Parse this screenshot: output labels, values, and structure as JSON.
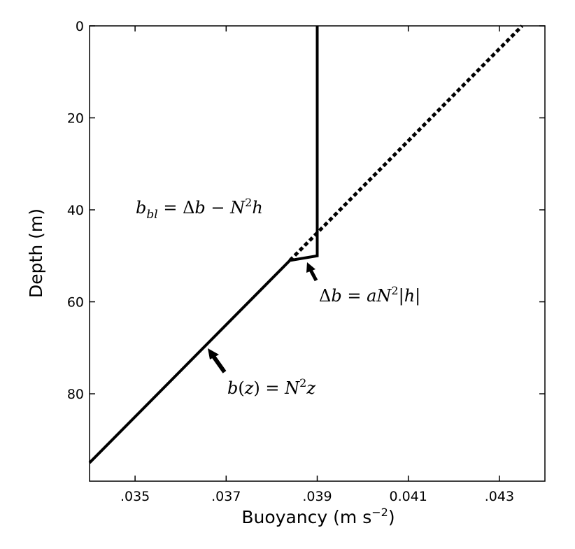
{
  "chart_data": {
    "type": "line",
    "title": "",
    "xlabel": "Buoyancy (m s⁻²)",
    "ylabel": "Depth (m)",
    "xlim": [
      0.034,
      0.044
    ],
    "ylim": [
      0,
      99
    ],
    "y_inverted": true,
    "grid": false,
    "x_ticks": [
      {
        "value": 0.035,
        "label": ".035"
      },
      {
        "value": 0.037,
        "label": ".037"
      },
      {
        "value": 0.039,
        "label": ".039"
      },
      {
        "value": 0.041,
        "label": "0.041"
      },
      {
        "value": 0.043,
        "label": ".043"
      }
    ],
    "y_ticks": [
      {
        "value": 0,
        "label": "0"
      },
      {
        "value": 20,
        "label": "20"
      },
      {
        "value": 40,
        "label": "40"
      },
      {
        "value": 60,
        "label": "60"
      },
      {
        "value": 80,
        "label": "80"
      }
    ],
    "series": [
      {
        "style": "solid",
        "points": [
          {
            "x": 0.034,
            "y": 95
          },
          {
            "x": 0.0384,
            "y": 51
          },
          {
            "x": 0.039,
            "y": 50
          },
          {
            "x": 0.039,
            "y": 0
          }
        ]
      },
      {
        "style": "dotted",
        "points": [
          {
            "x": 0.0384,
            "y": 51
          },
          {
            "x": 0.0435,
            "y": 0
          }
        ]
      }
    ],
    "annotations": [
      {
        "id": "bbl",
        "text": "b_bl = Δb − N²h"
      },
      {
        "id": "delta_b",
        "text": "Δb = aN²|h|"
      },
      {
        "id": "bz",
        "text": "b(z) = N²z"
      }
    ]
  }
}
